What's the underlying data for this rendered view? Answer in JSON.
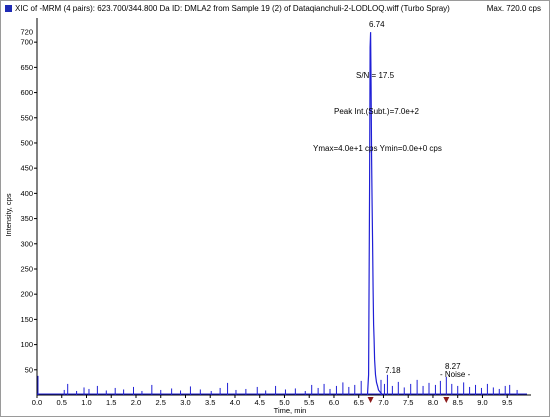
{
  "header": {
    "title": "XIC of -MRM (4 pairs): 623.700/344.800 Da ID: DMLA2 from Sample 19 (2) of Dataqianchuli-2-LODLOQ.wiff (Turbo Spray)",
    "max_label": "Max. 720.0 cps"
  },
  "colors": {
    "trace": "#1f1fd6",
    "axis": "#000000",
    "marker": "#8b1a1a"
  },
  "chart_data": {
    "type": "line",
    "xlabel": "Time, min",
    "ylabel": "Intensity, cps",
    "xlim": [
      0.0,
      9.9
    ],
    "ylim": [
      0,
      740
    ],
    "x_ticks": [
      0.0,
      0.5,
      1.0,
      1.5,
      2.0,
      2.5,
      3.0,
      3.5,
      4.0,
      4.5,
      5.0,
      5.5,
      6.0,
      6.5,
      7.0,
      7.5,
      8.0,
      8.5,
      9.0,
      9.5
    ],
    "x_tick_labels": [
      "0.0",
      "0.5",
      "1.0",
      "1.5",
      "2.0",
      "2.5",
      "3.0",
      "3.5",
      "4.0",
      "4.5",
      "5.0",
      "5.5",
      "6.0",
      "6.5",
      "7.0",
      "7.5",
      "8.0",
      "8.5",
      "9.0",
      "9.5"
    ],
    "y_ticks": [
      50,
      100,
      150,
      200,
      250,
      300,
      350,
      400,
      450,
      500,
      550,
      600,
      650,
      700
    ],
    "y_tick_labels": [
      "50",
      "100",
      "150",
      "200",
      "250",
      "300",
      "350",
      "400",
      "450",
      "500",
      "550",
      "600",
      "650",
      "700"
    ],
    "y_extra_label": "720",
    "peak": {
      "x": [
        6.68,
        6.7,
        6.72,
        6.73,
        6.74,
        6.75,
        6.76,
        6.77,
        6.78,
        6.79,
        6.8,
        6.81,
        6.82,
        6.84,
        6.86,
        6.88,
        6.9,
        6.93,
        6.96
      ],
      "y": [
        5,
        40,
        420,
        690,
        720,
        610,
        470,
        380,
        300,
        210,
        140,
        110,
        70,
        40,
        25,
        18,
        10,
        6,
        3
      ]
    },
    "noise": {
      "x": [
        0.02,
        0.55,
        0.62,
        0.8,
        0.95,
        1.05,
        1.22,
        1.4,
        1.58,
        1.75,
        1.95,
        2.12,
        2.32,
        2.5,
        2.72,
        2.9,
        3.1,
        3.3,
        3.52,
        3.7,
        3.85,
        4.02,
        4.22,
        4.45,
        4.62,
        4.82,
        5.02,
        5.22,
        5.42,
        5.55,
        5.68,
        5.8,
        5.92,
        6.05,
        6.18,
        6.3,
        6.42,
        6.55,
        6.95,
        7.02,
        7.08,
        7.18,
        7.3,
        7.42,
        7.55,
        7.68,
        7.8,
        7.92,
        8.05,
        8.15,
        8.27,
        8.38,
        8.5,
        8.62,
        8.74,
        8.86,
        8.98,
        9.1,
        9.22,
        9.34,
        9.46,
        9.55,
        9.7
      ],
      "y": [
        38,
        10,
        22,
        8,
        15,
        12,
        18,
        9,
        14,
        11,
        16,
        8,
        20,
        10,
        13,
        9,
        17,
        11,
        8,
        14,
        24,
        10,
        12,
        16,
        9,
        18,
        11,
        13,
        8,
        20,
        14,
        22,
        12,
        18,
        25,
        16,
        20,
        28,
        30,
        22,
        40,
        18,
        26,
        15,
        22,
        30,
        18,
        24,
        20,
        28,
        36,
        22,
        18,
        25,
        16,
        20,
        14,
        22,
        15,
        12,
        18,
        20,
        10
      ]
    },
    "annotations": {
      "peak_time": "6.74",
      "sn": "S/N = 17.5",
      "peak_int": "Peak Int.(Subt.)=7.0e+2",
      "ymax_ymin": "Ymax=4.0e+1 cps  Ymin=0.0e+0 cps",
      "small_peak_1": "7.18",
      "small_peak_2": "8.27",
      "noise_label": "- Noise -"
    },
    "markers_x": [
      6.74,
      8.27
    ]
  }
}
